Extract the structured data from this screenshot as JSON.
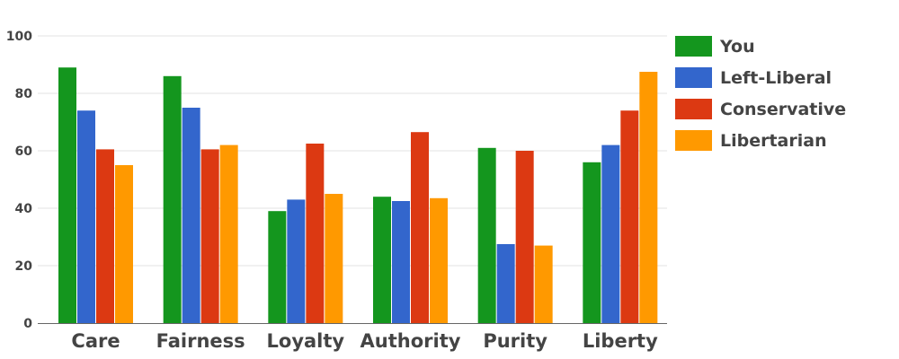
{
  "chart_data": {
    "type": "bar",
    "categories": [
      "Care",
      "Fairness",
      "Loyalty",
      "Authority",
      "Purity",
      "Liberty"
    ],
    "series": [
      {
        "name": "You",
        "color": "#14961e",
        "values": [
          89,
          86,
          39,
          44,
          61,
          56
        ]
      },
      {
        "name": "Left-Liberal",
        "color": "#3366cc",
        "values": [
          74,
          75,
          43,
          42.5,
          27.5,
          62
        ]
      },
      {
        "name": "Conservative",
        "color": "#dc3912",
        "values": [
          60.5,
          60.5,
          62.5,
          66.5,
          60,
          74
        ]
      },
      {
        "name": "Libertarian",
        "color": "#ff9900",
        "values": [
          55,
          62,
          45,
          43.5,
          27,
          87.5
        ]
      }
    ],
    "ylim": [
      0,
      100
    ],
    "yticks": [
      0,
      20,
      40,
      60,
      80,
      100
    ],
    "title": "",
    "xlabel": "",
    "ylabel": "",
    "grid": true,
    "legend_position": "right"
  }
}
